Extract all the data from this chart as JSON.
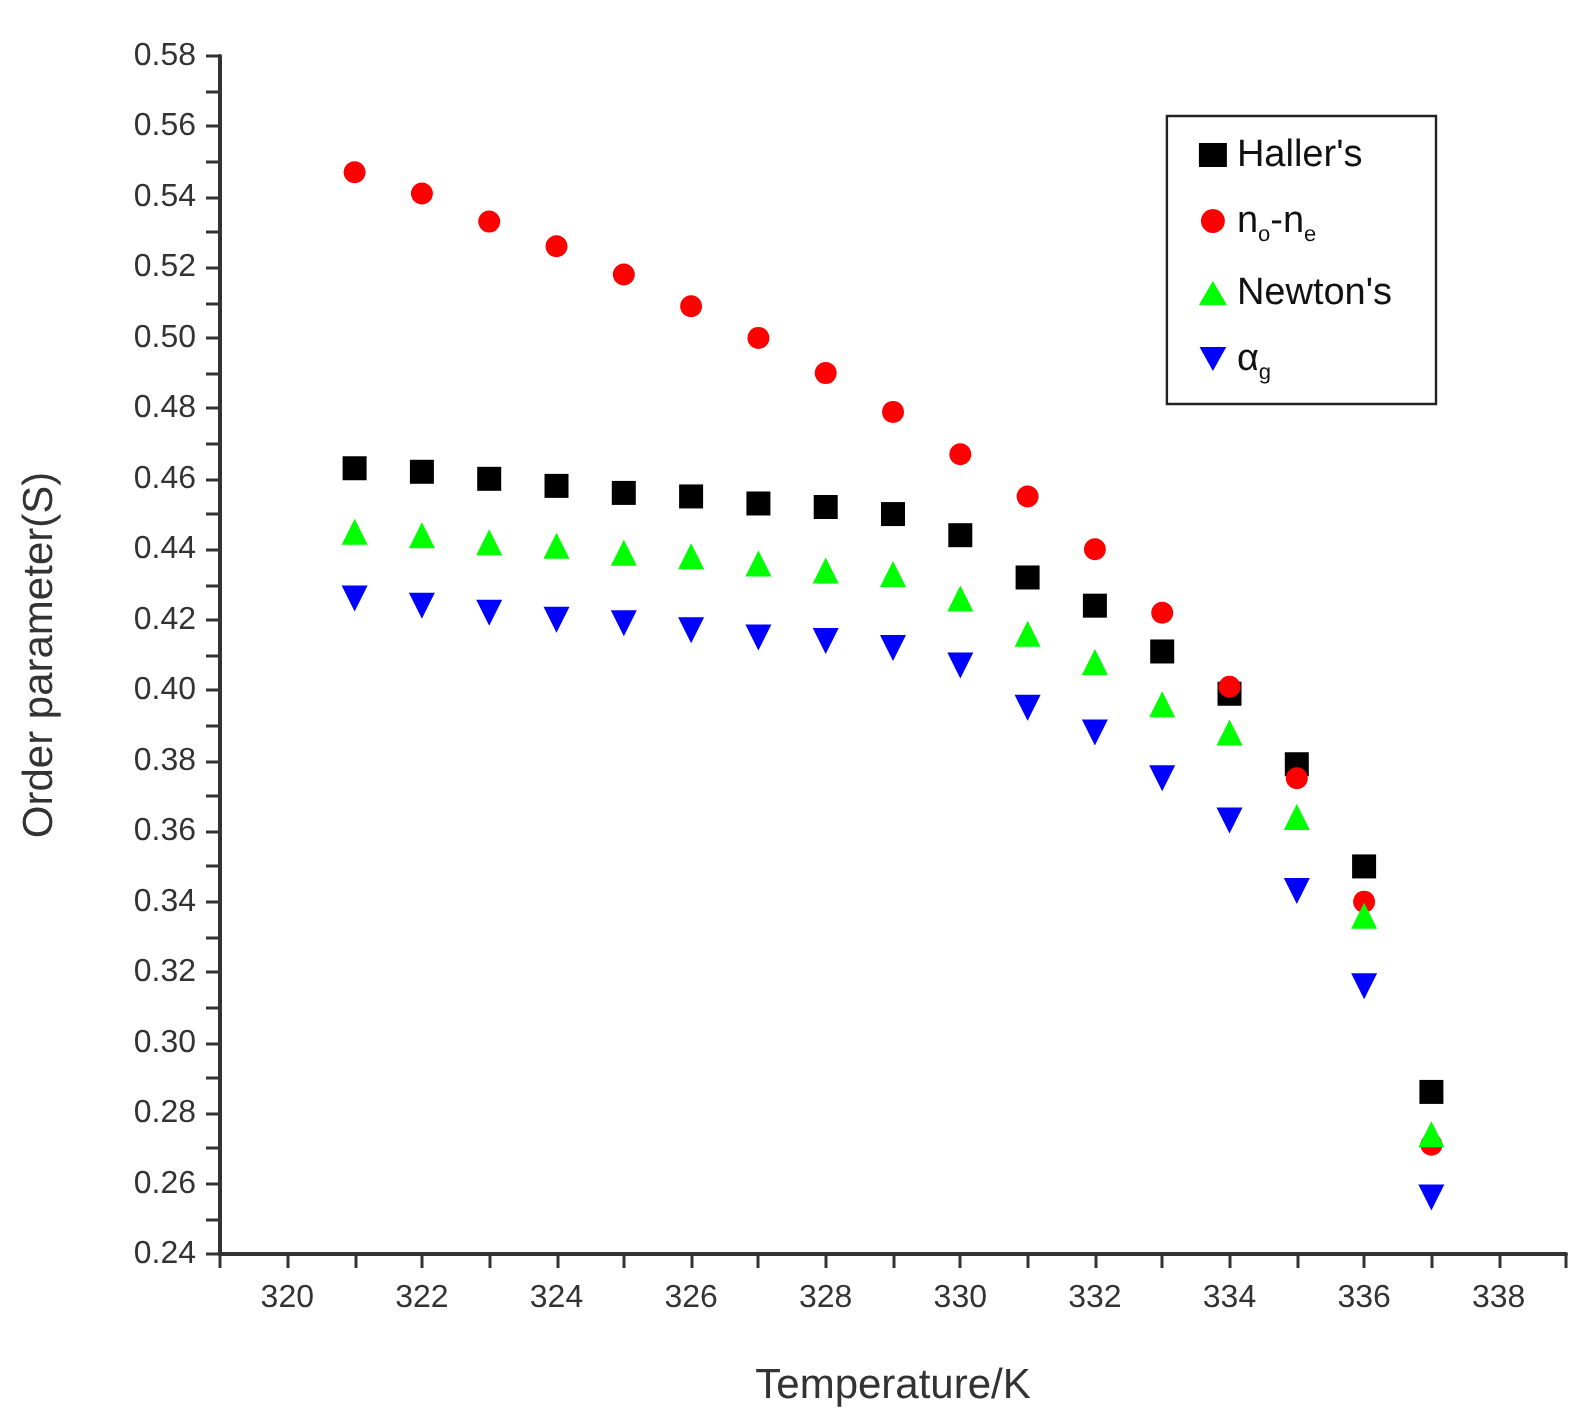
{
  "chart_data": {
    "type": "scatter",
    "xlabel": "Temperature/K",
    "ylabel": "Order parameter(S)",
    "x": [
      321,
      322,
      323,
      324,
      325,
      326,
      327,
      328,
      329,
      330,
      331,
      332,
      333,
      334,
      335,
      336,
      337
    ],
    "series": [
      {
        "name": "Haller's",
        "color": "#000000",
        "marker": "square",
        "values": [
          0.463,
          0.462,
          0.46,
          0.458,
          0.456,
          0.455,
          0.453,
          0.452,
          0.45,
          0.444,
          0.432,
          0.424,
          0.411,
          0.399,
          0.379,
          0.35,
          0.286
        ]
      },
      {
        "name": "n$_{o}$-n$_{e}$",
        "color": "#ff0000",
        "marker": "circle",
        "values": [
          0.547,
          0.541,
          0.533,
          0.526,
          0.518,
          0.509,
          0.5,
          0.49,
          0.479,
          0.467,
          0.455,
          0.44,
          0.422,
          0.401,
          0.375,
          0.34,
          0.271
        ]
      },
      {
        "name": "Newton's",
        "color": "#00ff00",
        "marker": "triangle",
        "values": [
          0.445,
          0.444,
          0.442,
          0.441,
          0.439,
          0.438,
          0.436,
          0.434,
          0.433,
          0.426,
          0.416,
          0.408,
          0.396,
          0.388,
          0.364,
          0.336,
          0.274
        ]
      },
      {
        "name": "α$_{g}$",
        "color": "#0000ff",
        "marker": "triangle-down",
        "values": [
          0.426,
          0.424,
          0.422,
          0.42,
          0.419,
          0.417,
          0.415,
          0.414,
          0.412,
          0.407,
          0.395,
          0.388,
          0.375,
          0.363,
          0.343,
          0.316,
          0.256
        ]
      }
    ],
    "xlim": [
      319,
      339
    ],
    "xticks": [
      {
        "value": 319,
        "label": null
      },
      320,
      {
        "value": 321,
        "label": null
      },
      322,
      {
        "value": 323,
        "label": null
      },
      324,
      {
        "value": 325,
        "label": null
      },
      326,
      {
        "value": 327,
        "label": null
      },
      328,
      {
        "value": 329,
        "label": null
      },
      330,
      {
        "value": 331,
        "label": null
      },
      332,
      {
        "value": 333,
        "label": null
      },
      334,
      {
        "value": 335,
        "label": null
      },
      336,
      {
        "value": 337,
        "label": null
      },
      338,
      {
        "value": 339,
        "label": null
      }
    ],
    "ylim": [
      0.24,
      0.58
    ],
    "yticks": [
      0.24,
      {
        "value": 0.25,
        "label": null
      },
      0.26,
      {
        "value": 0.27,
        "label": null
      },
      0.28,
      {
        "value": 0.29,
        "label": null
      },
      {
        "value": 0.3,
        "label": "0.30"
      },
      {
        "value": 0.31,
        "label": null
      },
      0.32,
      {
        "value": 0.33,
        "label": null
      },
      0.34,
      {
        "value": 0.35,
        "label": null
      },
      0.36,
      {
        "value": 0.37,
        "label": null
      },
      0.38,
      {
        "value": 0.39,
        "label": null
      },
      {
        "value": 0.4,
        "label": "0.40"
      },
      {
        "value": 0.41,
        "label": null
      },
      0.42,
      {
        "value": 0.43,
        "label": null
      },
      0.44,
      {
        "value": 0.45,
        "label": null
      },
      0.46,
      {
        "value": 0.47,
        "label": null
      },
      0.48,
      {
        "value": 0.49,
        "label": null
      },
      {
        "value": 0.5,
        "label": "0.50"
      },
      {
        "value": 0.51,
        "label": null
      },
      0.52,
      {
        "value": 0.53,
        "label": null
      },
      0.54,
      {
        "value": 0.55,
        "label": null
      },
      0.56,
      {
        "value": 0.57,
        "label": null
      },
      0.58
    ],
    "grid": false,
    "legend": "top right"
  }
}
